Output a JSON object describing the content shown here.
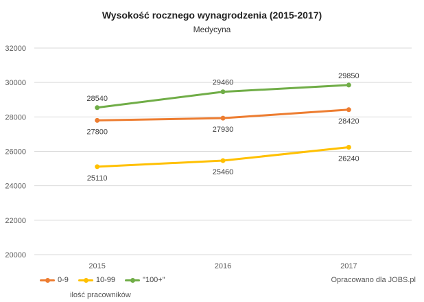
{
  "chart_data": {
    "type": "line",
    "title": "Wysokość rocznego wynagrodzenia (2015-2017)",
    "subtitle": "Medycyna",
    "categories": [
      "2015",
      "2016",
      "2017"
    ],
    "series": [
      {
        "name": "0-9",
        "color": "#ed7d31",
        "values": [
          27800,
          27930,
          28420
        ],
        "label_position": "below"
      },
      {
        "name": "10-99",
        "color": "#ffc000",
        "values": [
          25110,
          25460,
          26240
        ],
        "label_position": "below"
      },
      {
        "name": "\"100+\"",
        "color": "#70ad47",
        "values": [
          28540,
          29460,
          29850
        ],
        "label_position": "above"
      }
    ],
    "ylim": [
      20000,
      32000
    ],
    "yticks": [
      20000,
      22000,
      24000,
      26000,
      28000,
      30000,
      32000
    ],
    "grid": true,
    "legend_position": "bottom-left",
    "legend_title": "ilość pracowników",
    "source_note": "Opracowano dla JOBS.pl"
  }
}
